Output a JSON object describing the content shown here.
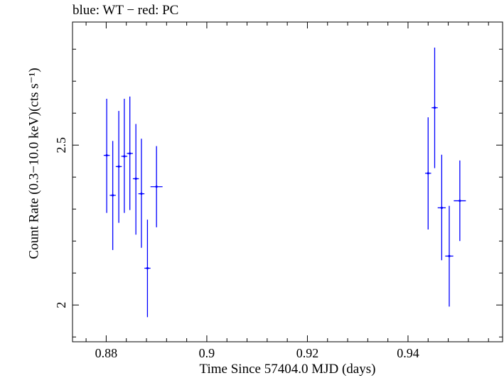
{
  "chart_data": {
    "type": "scatter",
    "title": "blue: WT − red: PC",
    "xlabel": "Time Since 57404.0 MJD (days)",
    "ylabel": "Count Rate (0.3−10.0 keV)(cts s⁻¹)",
    "xlim": [
      0.8733,
      0.9588
    ],
    "ylim": [
      1.885,
      2.885
    ],
    "xticks": [
      0.88,
      0.9,
      0.92,
      0.94
    ],
    "xtick_labels": [
      "0.88",
      "0.9",
      "0.92",
      "0.94"
    ],
    "yticks": [
      2.0,
      2.5
    ],
    "ytick_labels": [
      "2",
      "2.5"
    ],
    "grid": false,
    "series": [
      {
        "color": "#0000ff",
        "points": [
          {
            "x": 0.8801,
            "xerr": 0.0006,
            "y": 2.468,
            "ylo": 2.288,
            "yhi": 2.645
          },
          {
            "x": 0.8813,
            "xerr": 0.0006,
            "y": 2.343,
            "ylo": 2.172,
            "yhi": 2.513
          },
          {
            "x": 0.8825,
            "xerr": 0.0006,
            "y": 2.433,
            "ylo": 2.257,
            "yhi": 2.607
          },
          {
            "x": 0.8836,
            "xerr": 0.0006,
            "y": 2.465,
            "ylo": 2.288,
            "yhi": 2.645
          },
          {
            "x": 0.8847,
            "xerr": 0.0006,
            "y": 2.474,
            "ylo": 2.297,
            "yhi": 2.652
          },
          {
            "x": 0.8859,
            "xerr": 0.0006,
            "y": 2.395,
            "ylo": 2.22,
            "yhi": 2.566
          },
          {
            "x": 0.887,
            "xerr": 0.0006,
            "y": 2.348,
            "ylo": 2.179,
            "yhi": 2.52
          },
          {
            "x": 0.8882,
            "xerr": 0.0006,
            "y": 2.115,
            "ylo": 1.962,
            "yhi": 2.267
          },
          {
            "x": 0.89,
            "xerr": 0.0012,
            "y": 2.37,
            "ylo": 2.243,
            "yhi": 2.497
          },
          {
            "x": 0.944,
            "xerr": 0.0006,
            "y": 2.412,
            "ylo": 2.236,
            "yhi": 2.587
          },
          {
            "x": 0.9453,
            "xerr": 0.0006,
            "y": 2.617,
            "ylo": 2.428,
            "yhi": 2.805
          },
          {
            "x": 0.9467,
            "xerr": 0.0008,
            "y": 2.304,
            "ylo": 2.14,
            "yhi": 2.47
          },
          {
            "x": 0.9482,
            "xerr": 0.0008,
            "y": 2.153,
            "ylo": 1.995,
            "yhi": 2.31
          },
          {
            "x": 0.9503,
            "xerr": 0.0012,
            "y": 2.326,
            "ylo": 2.2,
            "yhi": 2.452
          }
        ]
      }
    ]
  }
}
